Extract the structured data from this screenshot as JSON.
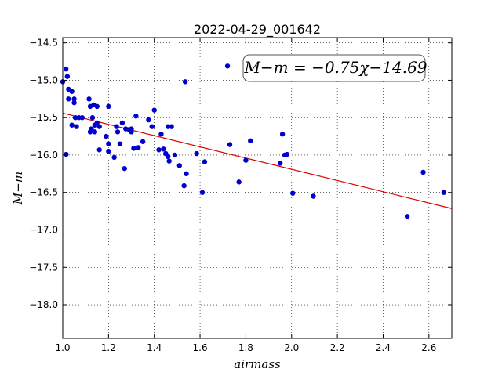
{
  "chart_data": {
    "type": "scatter",
    "title": "2022-04-29_001642",
    "xlabel": "airmass",
    "ylabel": "M−m",
    "xlim": [
      1.0,
      2.7
    ],
    "ylim": [
      -18.45,
      -14.43
    ],
    "y_inverted": true,
    "grid": true,
    "x_ticks": [
      "1.0",
      "1.2",
      "1.4",
      "1.6",
      "1.8",
      "2.0",
      "2.2",
      "2.4",
      "2.6"
    ],
    "y_ticks": [
      "−14.5",
      "−15.0",
      "−15.5",
      "−16.0",
      "−16.5",
      "−17.0",
      "−17.5",
      "−18.0"
    ],
    "annotation": "M−m = −0.75χ−14.69",
    "colors": {
      "points": "#0000cc",
      "fit_line": "#dd0000"
    },
    "fit": {
      "slope": -0.75,
      "intercept": -14.69
    },
    "series": [
      {
        "points": [
          [
            1.0,
            -15.02
          ],
          [
            1.014,
            -14.85
          ],
          [
            1.02,
            -14.95
          ],
          [
            1.025,
            -15.12
          ],
          [
            1.025,
            -15.25
          ],
          [
            1.04,
            -15.15
          ],
          [
            1.05,
            -15.25
          ],
          [
            1.05,
            -15.3
          ],
          [
            1.015,
            -15.99
          ],
          [
            1.04,
            -15.6
          ],
          [
            1.055,
            -15.5
          ],
          [
            1.06,
            -15.62
          ],
          [
            1.07,
            -15.5
          ],
          [
            1.085,
            -15.5
          ],
          [
            1.115,
            -15.25
          ],
          [
            1.12,
            -15.35
          ],
          [
            1.135,
            -15.33
          ],
          [
            1.15,
            -15.35
          ],
          [
            1.13,
            -15.5
          ],
          [
            1.125,
            -15.65
          ],
          [
            1.12,
            -15.69
          ],
          [
            1.14,
            -15.6
          ],
          [
            1.14,
            -15.69
          ],
          [
            1.15,
            -15.57
          ],
          [
            1.16,
            -15.62
          ],
          [
            1.16,
            -15.93
          ],
          [
            1.19,
            -15.75
          ],
          [
            1.2,
            -15.35
          ],
          [
            1.2,
            -15.85
          ],
          [
            1.2,
            -15.95
          ],
          [
            1.225,
            -16.03
          ],
          [
            1.235,
            -15.62
          ],
          [
            1.24,
            -15.69
          ],
          [
            1.25,
            -15.85
          ],
          [
            1.26,
            -15.57
          ],
          [
            1.27,
            -16.18
          ],
          [
            1.275,
            -15.65
          ],
          [
            1.29,
            -15.66
          ],
          [
            1.3,
            -15.65
          ],
          [
            1.3,
            -15.69
          ],
          [
            1.31,
            -15.91
          ],
          [
            1.32,
            -15.48
          ],
          [
            1.33,
            -15.9
          ],
          [
            1.35,
            -15.82
          ],
          [
            1.375,
            -15.53
          ],
          [
            1.39,
            -15.62
          ],
          [
            1.4,
            -15.4
          ],
          [
            1.42,
            -15.93
          ],
          [
            1.43,
            -15.72
          ],
          [
            1.44,
            -15.92
          ],
          [
            1.45,
            -15.98
          ],
          [
            1.46,
            -15.62
          ],
          [
            1.46,
            -16.02
          ],
          [
            1.465,
            -16.08
          ],
          [
            1.475,
            -15.62
          ],
          [
            1.49,
            -16.0
          ],
          [
            1.51,
            -16.14
          ],
          [
            1.53,
            -16.41
          ],
          [
            1.535,
            -15.02
          ],
          [
            1.54,
            -16.25
          ],
          [
            1.585,
            -15.98
          ],
          [
            1.61,
            -16.5
          ],
          [
            1.62,
            -16.09
          ],
          [
            1.72,
            -14.81
          ],
          [
            1.73,
            -15.86
          ],
          [
            1.77,
            -16.36
          ],
          [
            1.8,
            -16.07
          ],
          [
            1.82,
            -15.81
          ],
          [
            1.95,
            -16.11
          ],
          [
            1.96,
            -15.72
          ],
          [
            1.97,
            -16.0
          ],
          [
            1.98,
            -15.99
          ],
          [
            2.005,
            -16.51
          ],
          [
            2.095,
            -16.55
          ],
          [
            2.505,
            -16.82
          ],
          [
            2.575,
            -16.23
          ],
          [
            2.665,
            -16.5
          ]
        ]
      }
    ]
  }
}
